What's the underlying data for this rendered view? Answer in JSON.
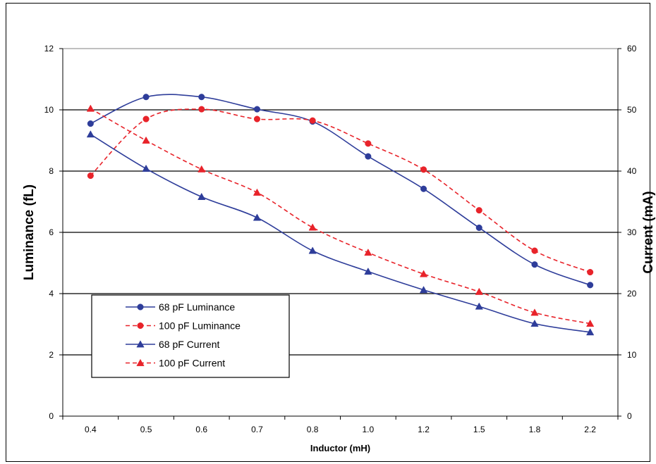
{
  "chart_data": {
    "type": "line",
    "categories": [
      "0.4",
      "0.5",
      "0.6",
      "0.7",
      "0.8",
      "1.0",
      "1.2",
      "1.5",
      "1.8",
      "2.2"
    ],
    "xlabel": "Inductor (mH)",
    "ylabel": "Luminance (fL)",
    "y2label": "Current (mA)",
    "ylim": [
      0,
      12
    ],
    "y2lim": [
      0,
      60
    ],
    "yticks": [
      "0",
      "2",
      "4",
      "6",
      "8",
      "10",
      "12"
    ],
    "y2ticks": [
      "0",
      "10",
      "20",
      "30",
      "40",
      "50",
      "60"
    ],
    "grid": "horizontal",
    "legend_position": "bottom-left",
    "series": [
      {
        "name": "68 pF  Luminance",
        "axis": "left",
        "color": "#2e3d9a",
        "dash": "solid",
        "marker": "circle",
        "values": [
          9.55,
          10.42,
          10.42,
          10.02,
          9.62,
          8.48,
          7.42,
          6.15,
          4.95,
          4.28
        ]
      },
      {
        "name": "100 pF  Luminance",
        "axis": "left",
        "color": "#e8232a",
        "dash": "dashed",
        "marker": "circle",
        "values": [
          7.85,
          9.7,
          10.02,
          9.7,
          9.65,
          8.9,
          8.05,
          6.72,
          5.4,
          4.7
        ]
      },
      {
        "name": "68 pF  Current",
        "axis": "right",
        "color": "#2e3d9a",
        "dash": "solid",
        "marker": "triangle",
        "values": [
          46.0,
          40.4,
          35.8,
          32.4,
          27.0,
          23.6,
          20.6,
          17.9,
          15.1,
          13.7
        ]
      },
      {
        "name": "100 pF  Current",
        "axis": "right",
        "color": "#e8232a",
        "dash": "dashed",
        "marker": "triangle",
        "values": [
          50.2,
          45.0,
          40.3,
          36.5,
          30.8,
          26.7,
          23.2,
          20.3,
          16.9,
          15.1
        ]
      }
    ]
  }
}
